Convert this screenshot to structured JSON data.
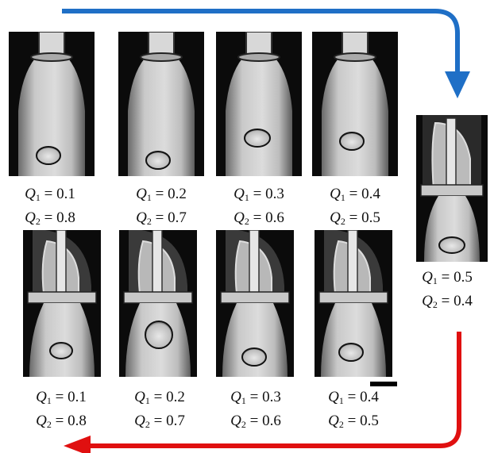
{
  "figure": {
    "top_row": [
      {
        "q1": "0.1",
        "q2": "0.8"
      },
      {
        "q1": "0.2",
        "q2": "0.7"
      },
      {
        "q1": "0.3",
        "q2": "0.6"
      },
      {
        "q1": "0.4",
        "q2": "0.5"
      }
    ],
    "side": {
      "q1": "0.5",
      "q2": "0.4"
    },
    "bottom_row": [
      {
        "q1": "0.1",
        "q2": "0.8"
      },
      {
        "q1": "0.2",
        "q2": "0.7"
      },
      {
        "q1": "0.3",
        "q2": "0.6"
      },
      {
        "q1": "0.4",
        "q2": "0.5"
      }
    ],
    "symbols": {
      "flow": "Q",
      "sub1": "1",
      "sub2": "2",
      "equals": " = "
    },
    "arrow_colors": {
      "top": "#1f6fc6",
      "bottom": "#e01010"
    },
    "icons": {
      "top_arrow": "blue-curved-arrow-icon",
      "bottom_arrow": "red-curved-arrow-icon"
    }
  }
}
